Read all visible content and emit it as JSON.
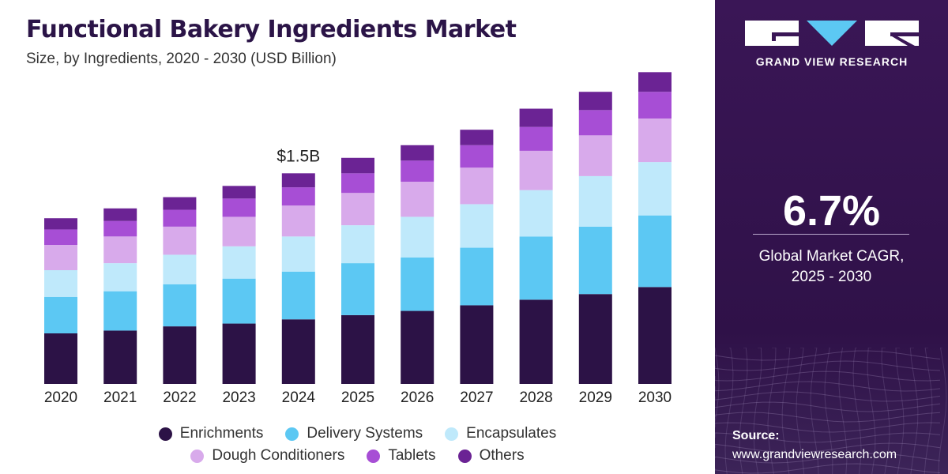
{
  "header": {
    "title": "Functional Bakery Ingredients Market",
    "subtitle": "Size, by Ingredients, 2020 - 2030  (USD Billion)"
  },
  "chart_data": {
    "type": "bar",
    "stacked": true,
    "title": "Functional Bakery Ingredients Market",
    "subtitle": "Size, by Ingredients, 2020 - 2030 (USD Billion)",
    "xlabel": "",
    "ylabel": "USD Billion",
    "ylim": [
      0,
      2.25
    ],
    "grid": false,
    "legend_position": "bottom",
    "categories": [
      "2020",
      "2021",
      "2022",
      "2023",
      "2024",
      "2025",
      "2026",
      "2027",
      "2028",
      "2029",
      "2030"
    ],
    "series": [
      {
        "name": "Enrichments",
        "color": "#2c1246",
        "values": [
          0.36,
          0.38,
          0.41,
          0.43,
          0.46,
          0.49,
          0.52,
          0.56,
          0.6,
          0.64,
          0.69
        ]
      },
      {
        "name": "Delivery Systems",
        "color": "#5cc8f3",
        "values": [
          0.26,
          0.28,
          0.3,
          0.32,
          0.34,
          0.37,
          0.38,
          0.41,
          0.45,
          0.48,
          0.51
        ]
      },
      {
        "name": "Encapsulates",
        "color": "#bfe9fb",
        "values": [
          0.19,
          0.2,
          0.21,
          0.23,
          0.25,
          0.27,
          0.29,
          0.31,
          0.33,
          0.36,
          0.38
        ]
      },
      {
        "name": "Dough Conditioners",
        "color": "#d8aaeb",
        "values": [
          0.18,
          0.19,
          0.2,
          0.21,
          0.22,
          0.23,
          0.25,
          0.26,
          0.28,
          0.29,
          0.31
        ]
      },
      {
        "name": "Tablets",
        "color": "#a74ed5",
        "values": [
          0.11,
          0.11,
          0.12,
          0.13,
          0.13,
          0.14,
          0.15,
          0.16,
          0.17,
          0.18,
          0.19
        ]
      },
      {
        "name": "Others",
        "color": "#6b2394",
        "values": [
          0.08,
          0.09,
          0.09,
          0.09,
          0.1,
          0.11,
          0.11,
          0.11,
          0.13,
          0.13,
          0.14
        ]
      }
    ],
    "annotations": [
      {
        "category": "2024",
        "text": "$1.5B"
      }
    ]
  },
  "sidebar": {
    "brand_name": "GRAND VIEW RESEARCH",
    "cagr_value": "6.7%",
    "cagr_label_line1": "Global Market CAGR,",
    "cagr_label_line2": "2025 - 2030",
    "source_label": "Source:",
    "source_url": "www.grandviewresearch.com"
  }
}
